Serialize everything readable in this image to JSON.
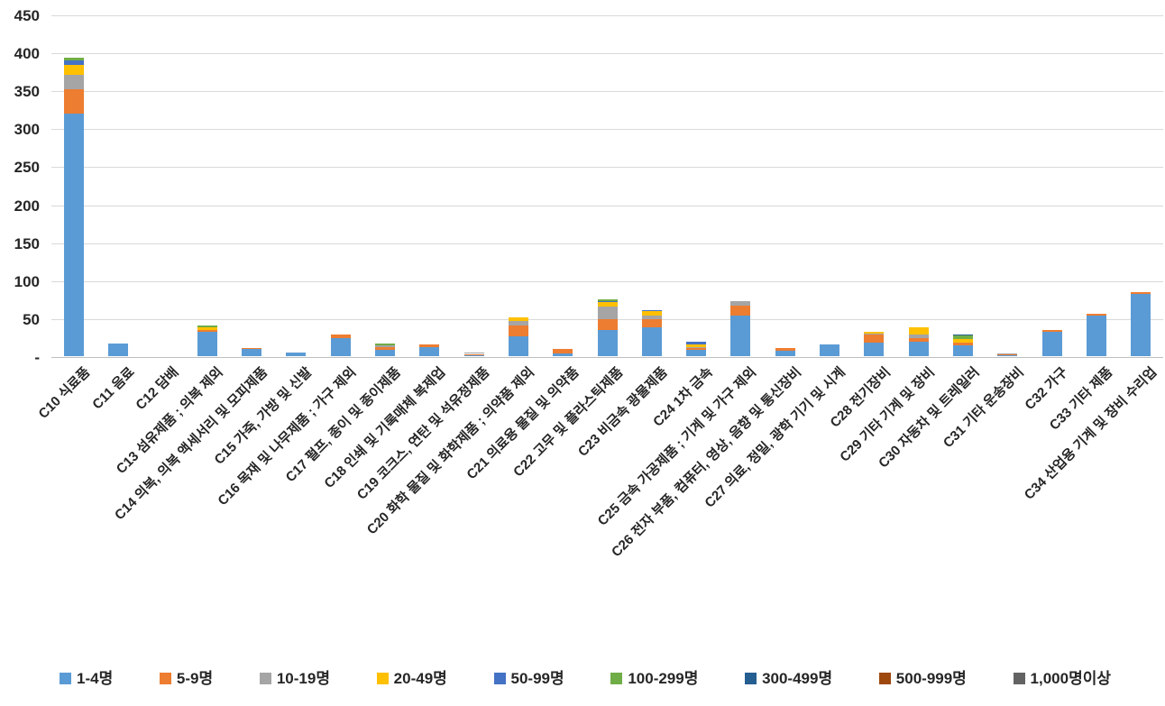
{
  "chart_data": {
    "type": "bar",
    "stacked": true,
    "title": "",
    "xlabel": "",
    "ylabel": "",
    "grid": true,
    "legend_position": "bottom",
    "y_axis": {
      "min": 0,
      "max": 450,
      "step": 50,
      "tick_labels": [
        "-",
        "50",
        "100",
        "150",
        "200",
        "250",
        "300",
        "350",
        "400",
        "450"
      ]
    },
    "categories": [
      "C10 식료품",
      "C11 음료",
      "C12 담배",
      "C13 섬유제품 ; 의복 제외",
      "C14 의복, 의복 액세서리 및 모피제품",
      "C15 가죽, 가방 및 신발",
      "C16 목재 및 나무제품 ; 가구 제외",
      "C17 펄프, 종이 및 종이제품",
      "C18 인쇄 및 기록매체 복제업",
      "C19 코크스, 연탄 및 석유정제품",
      "C20 화학 물질 및 화학제품 ; 의약품 제외",
      "C21 의료용 물질 및 의약품",
      "C22 고무 및 플라스틱제품",
      "C23 비금속 광물제품",
      "C24 1차 금속",
      "C25 금속 가공제품 ; 기계 및 가구 제외",
      "C26 전자 부품, 컴퓨터, 영상, 음향 및 통신장비",
      "C27 의료, 정밀, 광학 기기 및 시계",
      "C28 전기장비",
      "C29 기타 기계 및 장비",
      "C30 자동차 및 트레일러",
      "C31 기타 운송장비",
      "C32 가구",
      "C33 기타 제품",
      "C34 산업용 기계 및 장비 수리업"
    ],
    "series": [
      {
        "name": "1-4명",
        "color": "#5B9BD5",
        "values": [
          320,
          17,
          0,
          32,
          9,
          5,
          24,
          8,
          12,
          2,
          26,
          3,
          34,
          38,
          8,
          53,
          7,
          16,
          18,
          19,
          14,
          2,
          32,
          54,
          82
        ]
      },
      {
        "name": "5-9명",
        "color": "#ED7D31",
        "values": [
          32,
          0,
          0,
          3,
          2,
          0,
          4,
          4,
          3,
          1,
          14,
          7,
          15,
          11,
          3,
          13,
          4,
          0,
          10,
          5,
          4,
          1,
          2,
          2,
          2
        ]
      },
      {
        "name": "10-19명",
        "color": "#A5A5A5",
        "values": [
          18,
          0,
          0,
          0,
          0,
          0,
          0,
          2,
          0,
          2,
          6,
          0,
          16,
          5,
          1,
          7,
          0,
          0,
          2,
          5,
          0,
          1,
          0,
          0,
          0
        ]
      },
      {
        "name": "20-49명",
        "color": "#FFC000",
        "values": [
          14,
          0,
          0,
          3,
          0,
          0,
          0,
          0,
          0,
          0,
          5,
          0,
          6,
          5,
          3,
          0,
          0,
          0,
          2,
          9,
          5,
          0,
          0,
          0,
          0
        ]
      },
      {
        "name": "50-99명",
        "color": "#4472C4",
        "values": [
          5,
          0,
          0,
          0,
          0,
          0,
          0,
          0,
          0,
          0,
          0,
          0,
          2,
          2,
          4,
          0,
          0,
          0,
          0,
          0,
          0,
          0,
          0,
          0,
          0
        ]
      },
      {
        "name": "100-299명",
        "color": "#70AD47",
        "values": [
          4,
          0,
          0,
          2,
          0,
          0,
          0,
          3,
          0,
          0,
          0,
          0,
          2,
          0,
          0,
          0,
          0,
          0,
          0,
          0,
          4,
          0,
          0,
          0,
          0
        ]
      },
      {
        "name": "300-499명",
        "color": "#255E91",
        "values": [
          0,
          0,
          0,
          0,
          0,
          0,
          0,
          0,
          0,
          0,
          0,
          0,
          0,
          0,
          0,
          0,
          0,
          0,
          0,
          0,
          2,
          0,
          0,
          0,
          0
        ]
      },
      {
        "name": "500-999명",
        "color": "#9E480E",
        "values": [
          0,
          0,
          0,
          0,
          0,
          0,
          0,
          0,
          0,
          0,
          0,
          0,
          0,
          0,
          0,
          0,
          0,
          0,
          0,
          0,
          0,
          0,
          0,
          0,
          0
        ]
      },
      {
        "name": "1,000명이상",
        "color": "#636363",
        "values": [
          0,
          0,
          0,
          0,
          0,
          0,
          0,
          0,
          0,
          0,
          0,
          0,
          0,
          0,
          0,
          0,
          0,
          0,
          0,
          0,
          0,
          0,
          0,
          0,
          0
        ]
      }
    ]
  }
}
